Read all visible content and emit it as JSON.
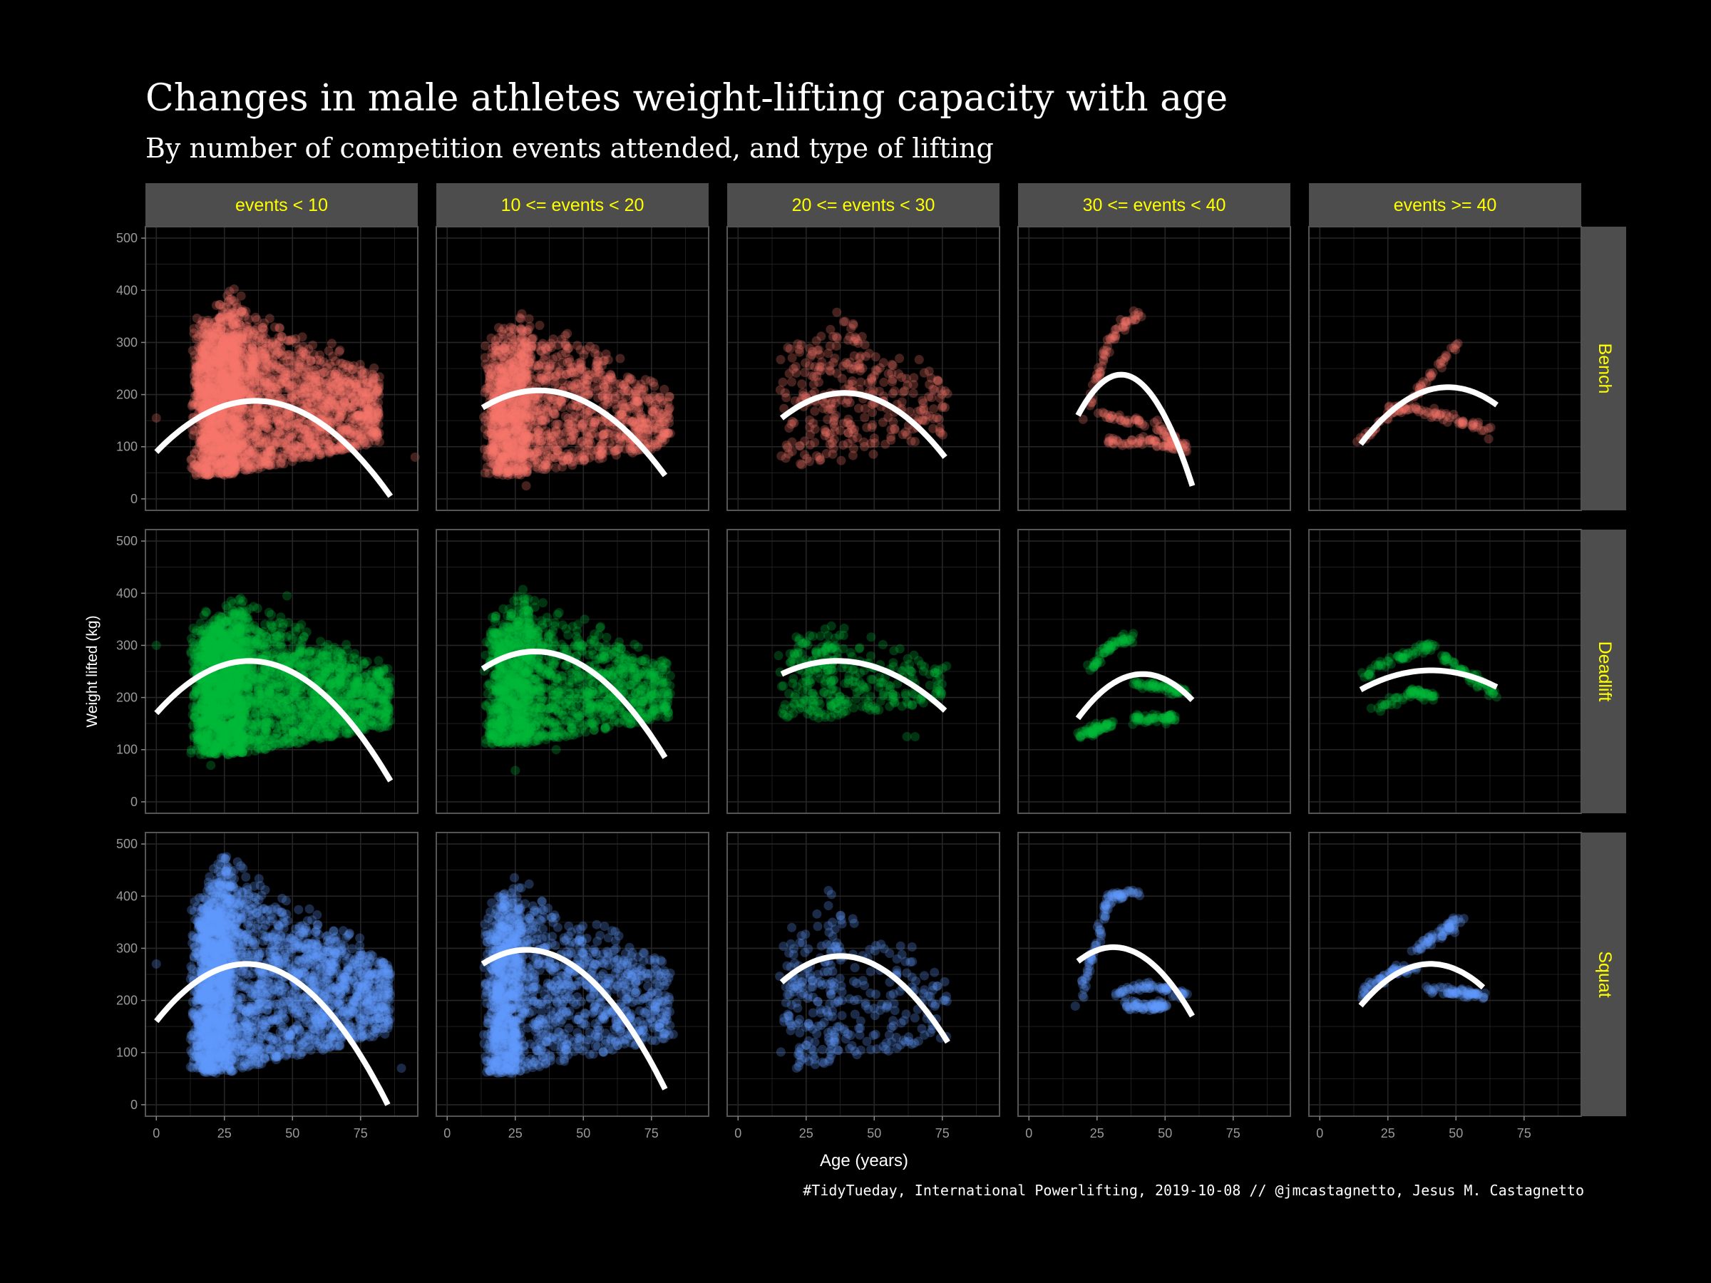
{
  "title": "Changes in male athletes weight-lifting capacity with age",
  "subtitle": "By number of competition events attended, and type of lifting",
  "caption": "#TidyTueday, International Powerlifting, 2019-10-08 // @jmcastagnetto, Jesus M. Castagnetto",
  "colors": {
    "background": "#000000",
    "strip": "#4d4d4d",
    "strip_text": "#ffff00",
    "grid": "#262626",
    "panel_border": "#555555",
    "axis_text": "#999999",
    "fit": "#ffffff",
    "Bench": "#F8766D",
    "Deadlift": "#00BA38",
    "Squat": "#619CFF"
  },
  "chart_data": {
    "type": "scatter",
    "xlabel": "Age (years)",
    "ylabel": "Weight lifted (kg)",
    "xlim": [
      -4,
      96
    ],
    "ylim": [
      -22,
      522
    ],
    "x_ticks": [
      0,
      25,
      50,
      75
    ],
    "y_ticks": [
      0,
      100,
      200,
      300,
      400,
      500
    ],
    "columns": [
      "events < 10",
      "10 <= events < 20",
      "20 <= events < 30",
      "30 <= events < 40",
      "events >= 40"
    ],
    "rows": [
      "Bench",
      "Deadlift",
      "Squat"
    ],
    "overlay": "quadratic fit line (white)",
    "panels": [
      {
        "row": "Bench",
        "col": "events < 10",
        "cloud": {
          "xmin": 14,
          "xpeak": 28,
          "xmax": 82,
          "top": 410,
          "bottom": 45,
          "n": 2600
        },
        "outliers": [
          [
            0,
            155
          ],
          [
            95,
            80
          ]
        ],
        "fit": [
          [
            0,
            90
          ],
          [
            36,
            188
          ],
          [
            86,
            5
          ]
        ]
      },
      {
        "row": "Bench",
        "col": "10 <= events < 20",
        "cloud": {
          "xmin": 15,
          "xpeak": 27,
          "xmax": 82,
          "top": 370,
          "bottom": 45,
          "n": 1500
        },
        "outliers": [
          [
            29,
            25
          ]
        ],
        "fit": [
          [
            13,
            175
          ],
          [
            34,
            208
          ],
          [
            80,
            45
          ]
        ]
      },
      {
        "row": "Bench",
        "col": "20 <= events < 30",
        "cloud": {
          "xmin": 16,
          "xpeak": 40,
          "xmax": 77,
          "top": 380,
          "bottom": 65,
          "n": 320
        },
        "outliers": [],
        "fit": [
          [
            16,
            155
          ],
          [
            40,
            203
          ],
          [
            76,
            80
          ]
        ]
      },
      {
        "row": "Bench",
        "col": "30 <= events < 40",
        "clusters": [
          [
            [
              20,
              150
            ],
            [
              30,
              310
            ],
            [
              40,
              355
            ]
          ],
          [
            [
              25,
              160
            ],
            [
              45,
              145
            ],
            [
              58,
              95
            ]
          ],
          [
            [
              28,
              110
            ],
            [
              45,
              110
            ],
            [
              58,
              95
            ]
          ]
        ],
        "outliers": [],
        "fit": [
          [
            18,
            160
          ],
          [
            33,
            238
          ],
          [
            60,
            25
          ]
        ]
      },
      {
        "row": "Bench",
        "col": "events >= 40",
        "clusters": [
          [
            [
              15,
              110
            ],
            [
              35,
              200
            ],
            [
              52,
              305
            ]
          ],
          [
            [
              25,
              180
            ],
            [
              45,
              160
            ],
            [
              64,
              130
            ]
          ]
        ],
        "outliers": [
          [
            62,
            115
          ]
        ],
        "fit": [
          [
            15,
            105
          ],
          [
            46,
            214
          ],
          [
            65,
            180
          ]
        ]
      },
      {
        "row": "Deadlift",
        "col": "events < 10",
        "cloud": {
          "xmin": 14,
          "xpeak": 30,
          "xmax": 86,
          "top": 405,
          "bottom": 90,
          "n": 2600
        },
        "outliers": [
          [
            0,
            300
          ],
          [
            20,
            70
          ],
          [
            48,
            395
          ]
        ],
        "fit": [
          [
            0,
            170
          ],
          [
            35,
            270
          ],
          [
            86,
            40
          ]
        ]
      },
      {
        "row": "Deadlift",
        "col": "10 <= events < 20",
        "cloud": {
          "xmin": 15,
          "xpeak": 28,
          "xmax": 82,
          "top": 410,
          "bottom": 110,
          "n": 1500
        },
        "outliers": [
          [
            25,
            60
          ],
          [
            40,
            100
          ]
        ],
        "fit": [
          [
            13,
            255
          ],
          [
            34,
            288
          ],
          [
            80,
            85
          ]
        ]
      },
      {
        "row": "Deadlift",
        "col": "20 <= events < 30",
        "cloud": {
          "xmin": 16,
          "xpeak": 34,
          "xmax": 77,
          "top": 360,
          "bottom": 160,
          "n": 320
        },
        "outliers": [
          [
            62,
            125
          ],
          [
            65,
            125
          ]
        ],
        "fit": [
          [
            16,
            245
          ],
          [
            38,
            270
          ],
          [
            76,
            175
          ]
        ]
      },
      {
        "row": "Deadlift",
        "col": "30 <= events < 40",
        "clusters": [
          [
            [
              18,
              125
            ],
            [
              25,
              140
            ],
            [
              30,
              150
            ]
          ],
          [
            [
              22,
              250
            ],
            [
              30,
              300
            ],
            [
              38,
              315
            ]
          ],
          [
            [
              38,
              225
            ],
            [
              50,
              220
            ],
            [
              58,
              210
            ]
          ],
          [
            [
              38,
              160
            ],
            [
              48,
              160
            ],
            [
              53,
              160
            ]
          ]
        ],
        "outliers": [],
        "fit": [
          [
            18,
            160
          ],
          [
            42,
            245
          ],
          [
            60,
            195
          ]
        ]
      },
      {
        "row": "Deadlift",
        "col": "events >= 40",
        "clusters": [
          [
            [
              15,
              240
            ],
            [
              30,
              280
            ],
            [
              42,
              300
            ]
          ],
          [
            [
              20,
              180
            ],
            [
              35,
              210
            ],
            [
              42,
              200
            ]
          ],
          [
            [
              45,
              280
            ],
            [
              55,
              240
            ],
            [
              65,
              210
            ]
          ]
        ],
        "outliers": [],
        "fit": [
          [
            15,
            215
          ],
          [
            40,
            252
          ],
          [
            65,
            220
          ]
        ]
      },
      {
        "row": "Squat",
        "col": "events < 10",
        "cloud": {
          "xmin": 14,
          "xpeak": 25,
          "xmax": 86,
          "top": 490,
          "bottom": 60,
          "n": 2600
        },
        "outliers": [
          [
            0,
            270
          ],
          [
            90,
            70
          ]
        ],
        "fit": [
          [
            0,
            160
          ],
          [
            33,
            270
          ],
          [
            85,
            0
          ]
        ]
      },
      {
        "row": "Squat",
        "col": "10 <= events < 20",
        "cloud": {
          "xmin": 15,
          "xpeak": 24,
          "xmax": 82,
          "top": 450,
          "bottom": 60,
          "n": 1500
        },
        "outliers": [
          [
            83,
            135
          ]
        ],
        "fit": [
          [
            13,
            270
          ],
          [
            30,
            297
          ],
          [
            80,
            30
          ]
        ]
      },
      {
        "row": "Squat",
        "col": "20 <= events < 30",
        "cloud": {
          "xmin": 16,
          "xpeak": 33,
          "xmax": 77,
          "top": 415,
          "bottom": 70,
          "n": 320
        },
        "outliers": [],
        "fit": [
          [
            16,
            235
          ],
          [
            37,
            285
          ],
          [
            77,
            120
          ]
        ]
      },
      {
        "row": "Squat",
        "col": "30 <= events < 40",
        "clusters": [
          [
            [
              18,
              190
            ],
            [
              24,
              300
            ],
            [
              30,
              400
            ],
            [
              40,
              410
            ]
          ],
          [
            [
              30,
              210
            ],
            [
              45,
              230
            ],
            [
              58,
              210
            ]
          ],
          [
            [
              35,
              190
            ],
            [
              45,
              190
            ],
            [
              50,
              190
            ]
          ]
        ],
        "outliers": [],
        "fit": [
          [
            18,
            275
          ],
          [
            32,
            302
          ],
          [
            60,
            170
          ]
        ]
      },
      {
        "row": "Squat",
        "col": "events >= 40",
        "clusters": [
          [
            [
              15,
              210
            ],
            [
              25,
              250
            ],
            [
              35,
              265
            ]
          ],
          [
            [
              35,
              300
            ],
            [
              45,
              330
            ],
            [
              52,
              355
            ]
          ],
          [
            [
              40,
              220
            ],
            [
              52,
              215
            ],
            [
              60,
              210
            ]
          ]
        ],
        "outliers": [],
        "fit": [
          [
            15,
            190
          ],
          [
            40,
            270
          ],
          [
            60,
            225
          ]
        ]
      }
    ]
  }
}
